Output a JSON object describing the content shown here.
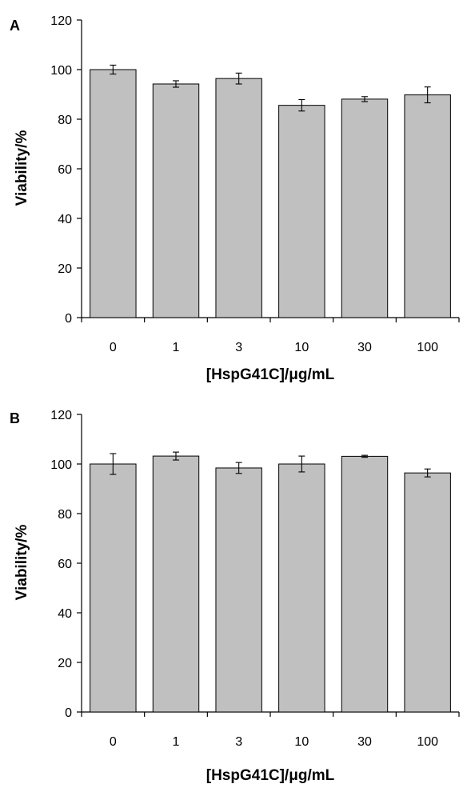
{
  "chart_data": [
    {
      "type": "bar",
      "panel_label": "A",
      "categories": [
        "0",
        "1",
        "3",
        "10",
        "30",
        "100"
      ],
      "values": [
        100,
        94.2,
        96.4,
        85.6,
        88.1,
        89.8
      ],
      "errors": [
        1.8,
        1.3,
        2.2,
        2.3,
        1.0,
        3.2
      ],
      "xlabel": "[HspG41C]/μg/mL",
      "ylabel": "Viability/%",
      "ylim": [
        0,
        120
      ],
      "yticks": [
        0,
        20,
        40,
        60,
        80,
        100,
        120
      ],
      "bar_color": "#c0c0c0",
      "grid": false
    },
    {
      "type": "bar",
      "panel_label": "B",
      "categories": [
        "0",
        "1",
        "3",
        "10",
        "30",
        "100"
      ],
      "values": [
        100,
        103.2,
        98.4,
        100,
        103.1,
        96.4
      ],
      "errors": [
        4.2,
        1.6,
        2.2,
        3.2,
        0.4,
        1.6
      ],
      "xlabel": "[HspG41C]/μg/mL",
      "ylabel": "Viability/%",
      "ylim": [
        0,
        120
      ],
      "yticks": [
        0,
        20,
        40,
        60,
        80,
        100,
        120
      ],
      "bar_color": "#c0c0c0",
      "grid": false
    }
  ]
}
